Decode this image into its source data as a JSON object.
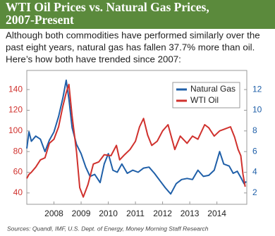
{
  "chart_data": {
    "type": "line",
    "title": [
      "WTI Oil Prices vs. Natural Gas Prices,",
      "2007-Present"
    ],
    "subtitle": [
      "Although both commodities have performed similarly over the",
      "past eight years, natural gas has fallen 37.7% more than oil.",
      "Here’s how both have trended since 2007:"
    ],
    "source": "Sources: Quandl, IMF, U.S. Dept. of Energy, Money Morning Staff Research",
    "xlim": [
      2007,
      2015.1
    ],
    "xticks": [
      2008,
      2009,
      2010,
      2011,
      2012,
      2013,
      2014
    ],
    "ylim": [
      29,
      158.5
    ],
    "yticks": [
      40,
      60,
      80,
      100,
      120,
      140
    ],
    "y2lim": [
      0.9,
      13.85
    ],
    "y2ticks": [
      2,
      4,
      6,
      8,
      10,
      12
    ],
    "legend": "upper right",
    "series": [
      {
        "name": "Natural Gas",
        "color": "#1f5fa8",
        "axis": "y2",
        "x": [
          2007.0,
          2007.08,
          2007.17,
          2007.33,
          2007.5,
          2007.67,
          2007.83,
          2008.0,
          2008.17,
          2008.33,
          2008.45,
          2008.55,
          2008.67,
          2008.83,
          2009.0,
          2009.17,
          2009.33,
          2009.5,
          2009.7,
          2009.85,
          2010.0,
          2010.17,
          2010.33,
          2010.5,
          2010.7,
          2010.9,
          2011.1,
          2011.3,
          2011.5,
          2011.7,
          2011.9,
          2012.1,
          2012.3,
          2012.5,
          2012.7,
          2012.9,
          2013.1,
          2013.3,
          2013.5,
          2013.7,
          2013.9,
          2014.1,
          2014.25,
          2014.45,
          2014.6,
          2014.75,
          2014.88,
          2015.0,
          2015.08
        ],
        "values": [
          6.3,
          7.9,
          7.0,
          7.5,
          7.2,
          6.0,
          7.1,
          7.9,
          9.4,
          11.2,
          12.9,
          11.1,
          8.3,
          6.7,
          5.8,
          4.5,
          3.6,
          3.8,
          3.0,
          4.8,
          5.8,
          4.2,
          4.0,
          4.8,
          3.9,
          4.2,
          4.0,
          4.4,
          4.5,
          3.9,
          3.2,
          2.5,
          1.9,
          2.9,
          3.3,
          3.4,
          3.3,
          4.2,
          3.6,
          3.7,
          4.2,
          6.0,
          4.8,
          4.6,
          3.9,
          4.1,
          3.5,
          2.9,
          3.1
        ]
      },
      {
        "name": "WTI Oil",
        "color": "#d0312d",
        "axis": "y",
        "x": [
          2007.0,
          2007.08,
          2007.17,
          2007.33,
          2007.5,
          2007.67,
          2007.83,
          2008.0,
          2008.17,
          2008.33,
          2008.45,
          2008.55,
          2008.67,
          2008.83,
          2008.95,
          2009.08,
          2009.25,
          2009.45,
          2009.65,
          2009.85,
          2010.1,
          2010.3,
          2010.42,
          2010.6,
          2010.8,
          2011.0,
          2011.15,
          2011.3,
          2011.45,
          2011.6,
          2011.8,
          2012.0,
          2012.2,
          2012.45,
          2012.65,
          2012.9,
          2013.1,
          2013.3,
          2013.55,
          2013.7,
          2013.9,
          2014.1,
          2014.3,
          2014.5,
          2014.65,
          2014.78,
          2014.88,
          2014.96,
          2015.04
        ],
        "values": [
          54,
          58,
          60,
          65,
          72,
          74,
          88,
          92,
          104,
          124,
          137,
          145,
          114,
          80,
          45,
          36,
          48,
          68,
          70,
          77,
          76,
          86,
          72,
          77,
          82,
          90,
          104,
          112,
          96,
          86,
          90,
          100,
          106,
          82,
          95,
          88,
          95,
          92,
          106,
          103,
          95,
          100,
          102,
          104,
          94,
          82,
          76,
          58,
          46
        ]
      }
    ]
  }
}
